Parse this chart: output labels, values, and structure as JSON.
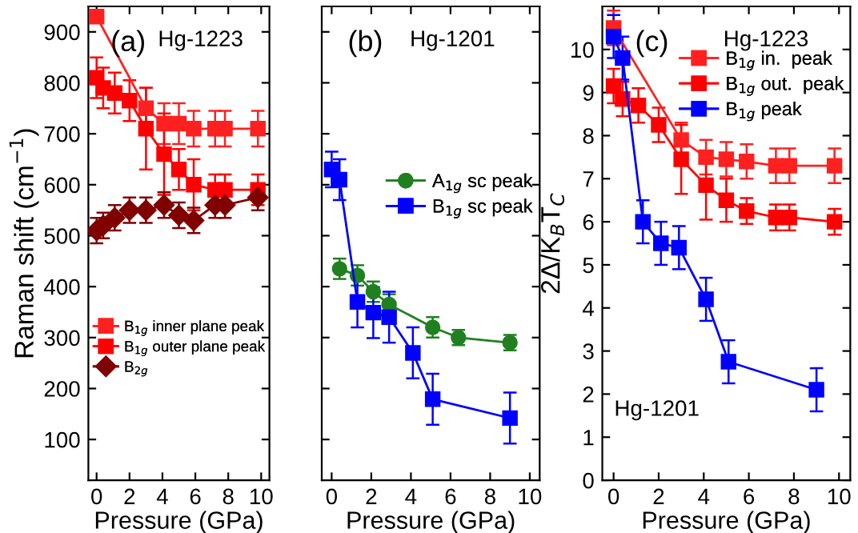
{
  "chart_data": [
    {
      "type": "line",
      "xlabel": "Pressure (GPa)",
      "ylabel": "Raman shift (cm$^{−1}$)",
      "xlim": [
        -0.5,
        10.5
      ],
      "xticks": [
        0,
        2,
        4,
        6,
        8,
        10
      ],
      "ylim": [
        20,
        950
      ],
      "yticks": [
        100,
        200,
        300,
        400,
        500,
        600,
        700,
        800,
        900
      ],
      "legend": "bottom left",
      "annotations": [
        "(a)",
        "Hg-1223"
      ],
      "series": [
        {
          "name": "B$_{1g}$ inner plane peak",
          "color": "#ff2020",
          "marker": "square",
          "x": [
            0,
            3,
            4.1,
            5,
            5.9,
            7.2,
            7.8,
            9.8
          ],
          "values": [
            930,
            750,
            720,
            720,
            710,
            710,
            710,
            710
          ],
          "errors": [
            null,
            40,
            40,
            40,
            35,
            35,
            35,
            35
          ]
        },
        {
          "name": "B$_{1g}$ outer plane peak",
          "color": "#ff0000",
          "marker": "square",
          "x": [
            0,
            0.4,
            1.1,
            2,
            3,
            4.1,
            5,
            5.9,
            7.2,
            7.8,
            9.8
          ],
          "values": [
            810,
            790,
            780,
            765,
            710,
            660,
            630,
            600,
            590,
            590,
            590
          ],
          "errors": [
            40,
            40,
            40,
            40,
            80,
            80,
            40,
            50,
            30,
            30,
            30
          ]
        },
        {
          "name": "B$_{2g}$",
          "color": "#800000",
          "marker": "diamond",
          "x": [
            0,
            0.4,
            1.1,
            2,
            3,
            4.1,
            5,
            5.9,
            7.2,
            7.8,
            9.8
          ],
          "values": [
            510,
            520,
            535,
            550,
            550,
            560,
            540,
            530,
            560,
            560,
            575
          ],
          "errors": [
            25,
            25,
            25,
            25,
            25,
            25,
            25,
            25,
            25,
            25,
            25
          ]
        }
      ]
    },
    {
      "type": "line",
      "xlabel": "Pressure (GPa)",
      "xlim": [
        -0.5,
        10.5
      ],
      "xticks": [
        0,
        2,
        4,
        6,
        8,
        10
      ],
      "ylim": [
        20,
        950
      ],
      "yticks": [
        100,
        200,
        300,
        400,
        500,
        600,
        700,
        800,
        900
      ],
      "tick_labels": "x",
      "legend": "right",
      "annotations": [
        "(b)",
        "Hg-1201"
      ],
      "series": [
        {
          "name": "A$_{1g}$ sc peak",
          "color": "#208020",
          "marker": "circle",
          "x": [
            0.4,
            1.3,
            2.1,
            2.9,
            5.1,
            6.4,
            9
          ],
          "values": [
            435,
            422,
            390,
            365,
            320,
            300,
            290
          ],
          "errors": [
            20,
            20,
            20,
            20,
            20,
            15,
            15
          ]
        },
        {
          "name": "B$_{1g}$ sc peak",
          "color": "#0000ff",
          "marker": "square",
          "x": [
            0,
            0.4,
            1.3,
            2.1,
            2.9,
            4.1,
            5.1,
            9
          ],
          "values": [
            630,
            610,
            370,
            349,
            340,
            270,
            179,
            142
          ],
          "errors": [
            35,
            40,
            50,
            50,
            50,
            50,
            50,
            50
          ]
        }
      ]
    },
    {
      "type": "line",
      "xlabel": "Pressure (GPa)",
      "ylabel": "2Δ/K$_{B}$T$_{C}$",
      "xlim": [
        -0.5,
        10.5
      ],
      "xticks": [
        0,
        2,
        4,
        6,
        8,
        10
      ],
      "ylim": [
        0,
        11
      ],
      "yticks": [
        0,
        1,
        2,
        3,
        4,
        5,
        6,
        7,
        8,
        9,
        10
      ],
      "legend": "top right",
      "annotations": [
        "(c)",
        "Hg-1223",
        "Hg-1201"
      ],
      "series": [
        {
          "name": "B$_{1g}$ in.  peak",
          "color": "#ff2020",
          "marker": "square",
          "x": [
            0,
            3,
            4.1,
            5,
            5.9,
            7.2,
            7.8,
            9.8
          ],
          "values": [
            10.5,
            7.9,
            7.5,
            7.45,
            7.4,
            7.3,
            7.3,
            7.3
          ],
          "errors": [
            0.4,
            0.4,
            0.4,
            0.4,
            0.4,
            0.4,
            0.4,
            0.4
          ]
        },
        {
          "name": "B$_{1g}$ out.  peak",
          "color": "#ff0000",
          "marker": "square",
          "x": [
            0,
            0.4,
            1.1,
            2,
            3,
            4.1,
            5,
            5.9,
            7.2,
            7.8,
            9.8
          ],
          "values": [
            9.15,
            8.85,
            8.7,
            8.25,
            7.45,
            6.85,
            6.5,
            6.25,
            6.1,
            6.1,
            6.0
          ],
          "errors": [
            0.4,
            0.4,
            0.4,
            0.4,
            0.8,
            0.8,
            0.5,
            0.3,
            0.3,
            0.3,
            0.3
          ]
        },
        {
          "name": "B$_{1g}$ peak",
          "color": "#0000ff",
          "marker": "square",
          "x": [
            0,
            0.4,
            1.3,
            2.1,
            2.9,
            4.1,
            5.1,
            9
          ],
          "values": [
            10.3,
            9.8,
            6.0,
            5.5,
            5.4,
            4.2,
            2.75,
            2.1
          ],
          "errors": [
            0.5,
            0.5,
            0.5,
            0.5,
            0.5,
            0.5,
            0.5,
            0.5
          ]
        }
      ]
    }
  ]
}
